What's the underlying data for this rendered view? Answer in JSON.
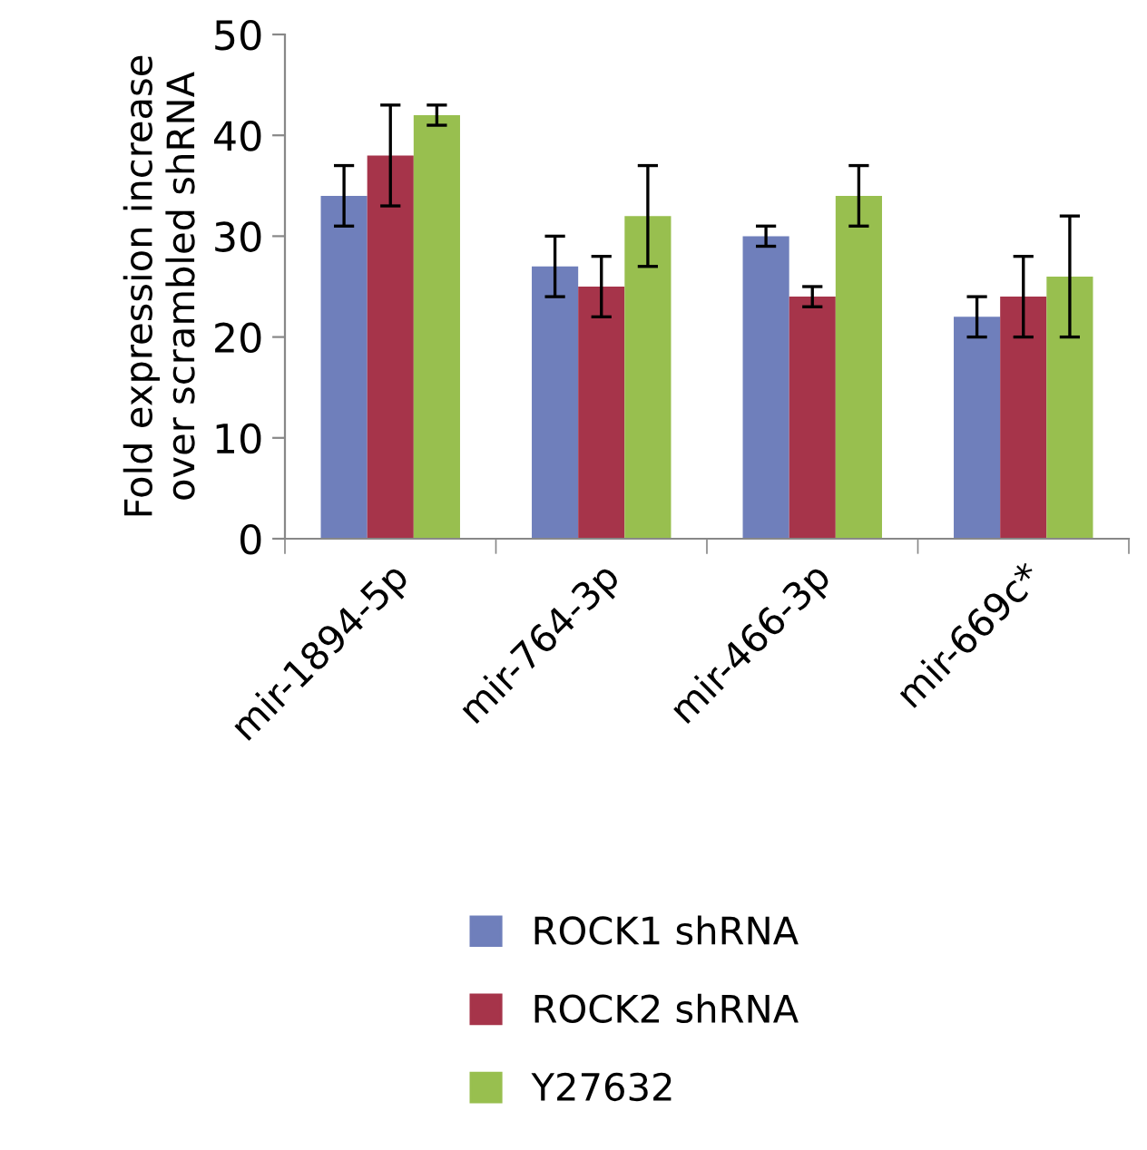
{
  "chart_data": {
    "type": "bar",
    "ylabel": "Fold expression increase\nover scrambled shRNA",
    "categories": [
      "mir-1894-5p",
      "mir-764-3p",
      "mir-466-3p",
      "mir-669c*"
    ],
    "series": [
      {
        "name": "ROCK1 shRNA",
        "color": "#6f7fbb",
        "values": [
          34,
          27,
          30,
          22
        ],
        "errors": [
          3,
          3,
          1,
          2
        ]
      },
      {
        "name": "ROCK2 shRNA",
        "color": "#a6344a",
        "values": [
          38,
          25,
          24,
          24
        ],
        "errors": [
          5,
          3,
          1,
          4
        ]
      },
      {
        "name": "Y27632",
        "color": "#98bf4f",
        "values": [
          42,
          32,
          34,
          26
        ],
        "errors": [
          1,
          5,
          3,
          6
        ]
      }
    ],
    "ylim": [
      0,
      50
    ],
    "yticks": [
      0,
      10,
      20,
      30,
      40,
      50
    ],
    "grid": false,
    "legend": "bottom"
  }
}
